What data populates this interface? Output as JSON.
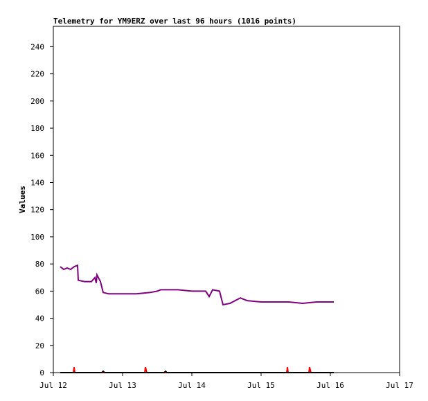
{
  "chart_data": {
    "type": "line",
    "title": "Telemetry for YM9ERZ over last 96 hours (1016 points)",
    "y_label": "Values",
    "xlim": [
      0,
      5
    ],
    "xticks": [
      {
        "value": 0,
        "label": "Jul 12"
      },
      {
        "value": 1,
        "label": "Jul 13"
      },
      {
        "value": 2,
        "label": "Jul 14"
      },
      {
        "value": 3,
        "label": "Jul 15"
      },
      {
        "value": 4,
        "label": "Jul 16"
      },
      {
        "value": 5,
        "label": "Jul 17"
      }
    ],
    "ylim": [
      0,
      255
    ],
    "yticks": [
      0,
      20,
      40,
      60,
      80,
      100,
      120,
      140,
      160,
      180,
      200,
      220,
      240
    ],
    "series": [
      {
        "color": "#800080",
        "x": [
          0.1,
          0.15,
          0.2,
          0.25,
          0.3,
          0.35,
          0.36,
          0.45,
          0.55,
          0.6,
          0.62,
          0.63,
          0.68,
          0.72,
          0.8,
          1.0,
          1.2,
          1.4,
          1.5,
          1.55,
          1.8,
          2.0,
          2.2,
          2.25,
          2.3,
          2.4,
          2.45,
          2.55,
          2.7,
          2.8,
          3.0,
          3.4,
          3.6,
          3.8,
          4.05
        ],
        "values": [
          78,
          76,
          77,
          76,
          78,
          79,
          68,
          67,
          67,
          70,
          66,
          72,
          67,
          59,
          58,
          58,
          58,
          59,
          60,
          61,
          61,
          60,
          60,
          56,
          61,
          60,
          50,
          51,
          55,
          53,
          52,
          52,
          51,
          52,
          52
        ]
      },
      {
        "color": "#ff0000",
        "x": [
          0.1,
          0.29,
          0.3,
          0.31,
          1.32,
          1.33,
          1.35,
          3.37,
          3.38,
          3.39,
          3.69,
          3.7,
          3.72,
          4.05
        ],
        "values": [
          0,
          0,
          4,
          0,
          0,
          4,
          0,
          0,
          4,
          0,
          0,
          4,
          0,
          0
        ]
      },
      {
        "color": "#000000",
        "x": [
          0.1,
          0.7,
          0.72,
          0.74,
          1.6,
          1.62,
          1.64,
          4.05
        ],
        "values": [
          0,
          0,
          1,
          0,
          0,
          1,
          0,
          0
        ]
      }
    ]
  }
}
